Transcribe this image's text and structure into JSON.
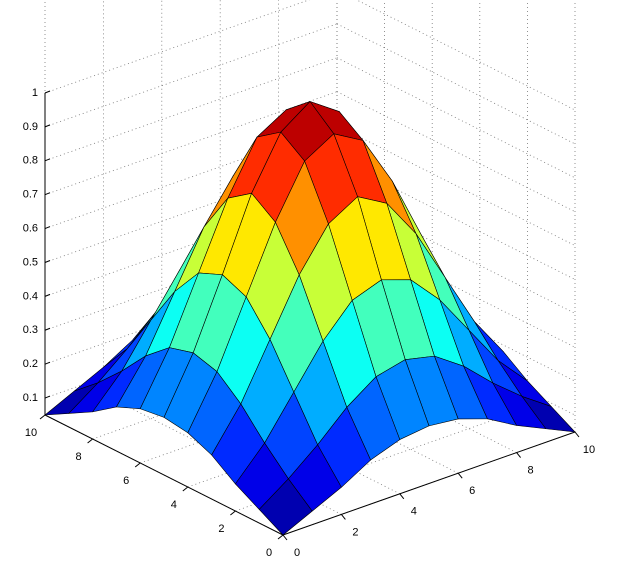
{
  "chart_data": {
    "type": "surface",
    "x": [
      0,
      1,
      2,
      3,
      4,
      5,
      6,
      7,
      8,
      9,
      10
    ],
    "y": [
      0,
      1,
      2,
      3,
      4,
      5,
      6,
      7,
      8,
      9,
      10
    ],
    "z": [
      [
        0.05,
        0.09,
        0.13,
        0.18,
        0.21,
        0.22,
        0.21,
        0.18,
        0.13,
        0.09,
        0.05
      ],
      [
        0.09,
        0.15,
        0.22,
        0.3,
        0.36,
        0.38,
        0.36,
        0.3,
        0.22,
        0.15,
        0.09
      ],
      [
        0.13,
        0.22,
        0.34,
        0.46,
        0.55,
        0.58,
        0.55,
        0.46,
        0.34,
        0.22,
        0.13
      ],
      [
        0.18,
        0.3,
        0.46,
        0.62,
        0.74,
        0.79,
        0.74,
        0.62,
        0.46,
        0.3,
        0.18
      ],
      [
        0.21,
        0.36,
        0.55,
        0.74,
        0.89,
        0.94,
        0.89,
        0.74,
        0.55,
        0.36,
        0.21
      ],
      [
        0.22,
        0.38,
        0.58,
        0.79,
        0.94,
        1,
        0.94,
        0.79,
        0.58,
        0.38,
        0.22
      ],
      [
        0.21,
        0.36,
        0.55,
        0.74,
        0.89,
        0.94,
        0.89,
        0.74,
        0.55,
        0.36,
        0.21
      ],
      [
        0.18,
        0.3,
        0.46,
        0.62,
        0.74,
        0.79,
        0.74,
        0.62,
        0.46,
        0.3,
        0.18
      ],
      [
        0.13,
        0.22,
        0.34,
        0.46,
        0.55,
        0.58,
        0.55,
        0.46,
        0.34,
        0.22,
        0.13
      ],
      [
        0.09,
        0.15,
        0.22,
        0.3,
        0.36,
        0.38,
        0.36,
        0.3,
        0.22,
        0.15,
        0.09
      ],
      [
        0.05,
        0.09,
        0.13,
        0.18,
        0.21,
        0.22,
        0.21,
        0.18,
        0.13,
        0.09,
        0.05
      ]
    ],
    "xlim": [
      0,
      10
    ],
    "ylim": [
      0,
      10
    ],
    "zlim": [
      0.05,
      1
    ],
    "xticks": [
      0,
      2,
      4,
      6,
      8,
      10
    ],
    "yticks": [
      0,
      2,
      4,
      6,
      8,
      10
    ],
    "zticks": [
      0.1,
      0.2,
      0.3,
      0.4,
      0.5,
      0.6,
      0.7,
      0.8,
      0.9,
      1
    ],
    "grid": true,
    "colormap": "jet"
  }
}
